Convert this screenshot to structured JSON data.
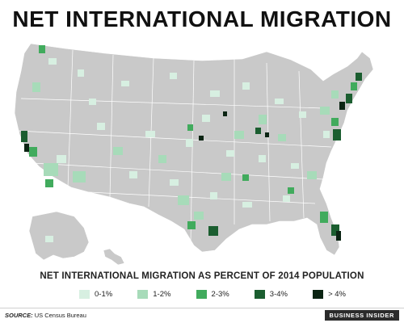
{
  "title": "NET INTERNATIONAL MIGRATION",
  "legend_title": "NET INTERNATIONAL MIGRATION AS PERCENT OF 2014 POPULATION",
  "legend": [
    {
      "label": "0-1%",
      "color": "#d7efe1"
    },
    {
      "label": "1-2%",
      "color": "#a7dbb9"
    },
    {
      "label": "2-3%",
      "color": "#41ab5d"
    },
    {
      "label": "3-4%",
      "color": "#1b5e30"
    },
    {
      "label": "> 4%",
      "color": "#0b2413"
    }
  ],
  "source_label": "SOURCE:",
  "source_text": "US Census Bureau",
  "brand": "BUSINESS INSIDER",
  "colors": {
    "land": "#c9c9c9",
    "border": "#ffffff"
  }
}
